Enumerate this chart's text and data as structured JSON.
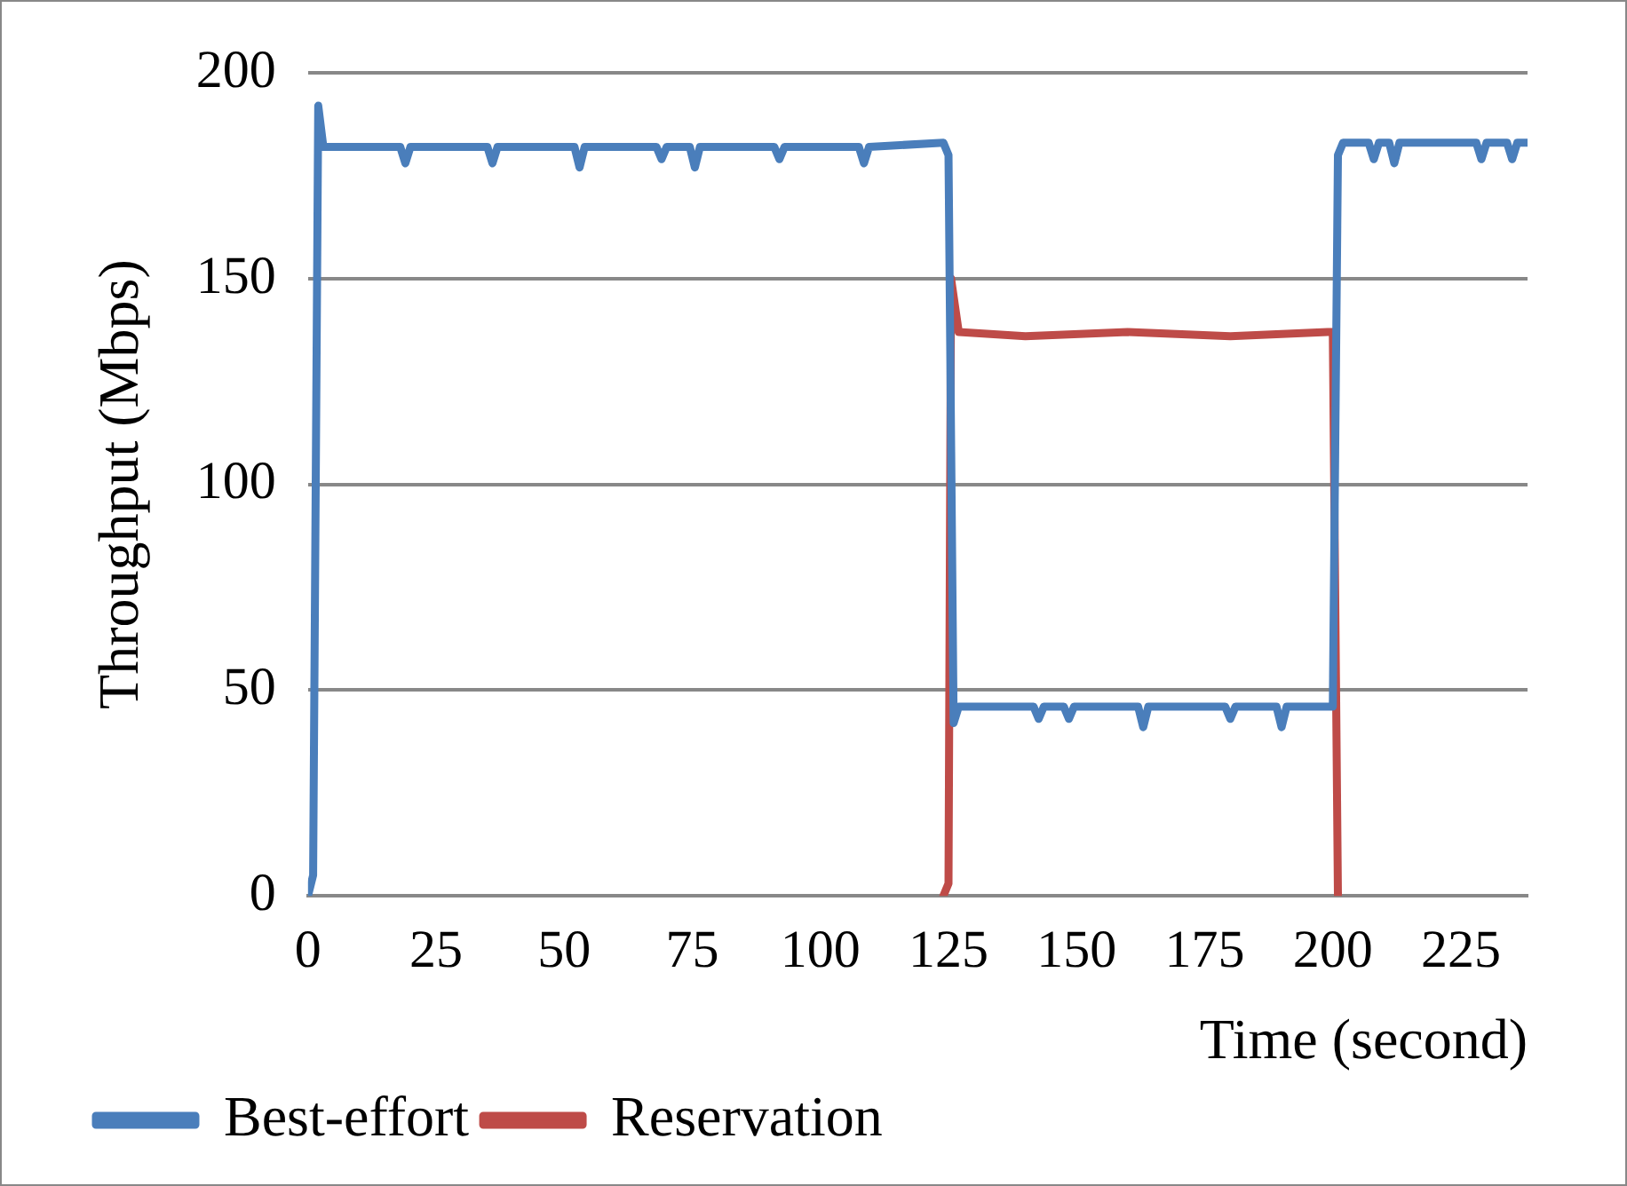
{
  "chart_data": {
    "type": "line",
    "xlabel": "Time (second)",
    "ylabel": "Throughput (Mbps)",
    "xlim": [
      0,
      238
    ],
    "xticks": [
      0,
      25,
      50,
      75,
      100,
      125,
      150,
      175,
      200,
      225
    ],
    "ylim": [
      0,
      200
    ],
    "yticks": [
      0,
      50,
      100,
      150,
      200
    ],
    "grid": "y",
    "legend": "bottom left",
    "marker": "none",
    "line_style": "solid",
    "series": [
      {
        "name": "Best-effort",
        "color": "#4a7ebb",
        "x": [
          0,
          1,
          2,
          3,
          18,
          19,
          20,
          35,
          36,
          37,
          52,
          53,
          54,
          68,
          69,
          70,
          74.5,
          75.5,
          76.5,
          91,
          92,
          93,
          107.5,
          108.5,
          109.5,
          124,
          125,
          126,
          127,
          141.6,
          142.6,
          143.6,
          147.5,
          148.5,
          149.5,
          162,
          163,
          164,
          179,
          180,
          181,
          189,
          190,
          191,
          200,
          201,
          202,
          207,
          208,
          209,
          211,
          212,
          213,
          228,
          229,
          230,
          234,
          235,
          236,
          238
        ],
        "values": [
          0,
          5,
          192,
          182,
          182,
          178,
          182,
          182,
          178,
          182,
          182,
          177,
          182,
          182,
          179,
          182,
          182,
          177,
          182,
          182,
          179,
          182,
          182,
          178,
          182,
          183,
          180,
          42,
          46,
          46,
          43,
          46,
          46,
          43,
          46,
          46,
          41,
          46,
          46,
          43,
          46,
          46,
          41,
          46,
          46,
          180,
          183,
          183,
          179,
          183,
          183,
          178,
          183,
          183,
          179,
          183,
          183,
          179,
          183,
          183
        ]
      },
      {
        "name": "Reservation",
        "color": "#be4b48",
        "x": [
          124,
          125,
          125.5,
          127,
          140,
          160,
          180,
          199,
          200,
          201
        ],
        "values": [
          0,
          3,
          150,
          137,
          136,
          137,
          136,
          137,
          137,
          0
        ]
      }
    ]
  }
}
